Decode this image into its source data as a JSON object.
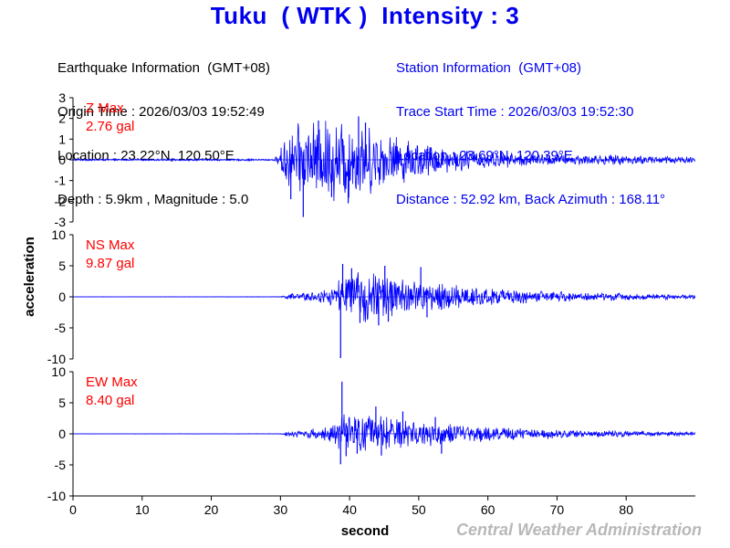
{
  "header": {
    "title": "Tuku  ( WTK )  Intensity : 3",
    "earthquake": {
      "heading": "Earthquake Information  (GMT+08)",
      "origin_time": "Origin Time : 2026/03/03 19:52:49",
      "location": "Location : 23.22°N, 120.50°E",
      "depth_mag": "Depth : 5.9km , Magnitude : 5.0"
    },
    "station": {
      "heading": "Station Information  (GMT+08)",
      "trace_start": "Trace Start Time : 2026/03/03 19:52:30",
      "location": "Location : 23.69°N, 120.39°E",
      "distance": "Distance : 52.92 km, Back Azimuth : 168.11°"
    }
  },
  "credit": "Central Weather Administration",
  "colors": {
    "title": "#0000ee",
    "trace": "#0000ff",
    "max_label": "#ff0000",
    "station_text": "#0000ee",
    "credit": "#b8b8b8"
  },
  "chart_data": {
    "type": "line",
    "xlabel": "second",
    "ylabel": "acceleration",
    "xlim": [
      0,
      90
    ],
    "xticks": [
      0,
      10,
      20,
      30,
      40,
      50,
      60,
      70,
      80
    ],
    "series": [
      {
        "name": "Z",
        "max_label": "Z Max",
        "max_value": "2.76 gal",
        "ylim": [
          -3,
          3
        ],
        "yticks": [
          3,
          2,
          1,
          0,
          -1,
          -2,
          -3
        ],
        "envelope": [
          [
            0,
            0.05
          ],
          [
            29,
            0.05
          ],
          [
            29.8,
            0.3
          ],
          [
            30.5,
            1.2
          ],
          [
            31,
            1.6
          ],
          [
            33,
            1.9
          ],
          [
            35,
            2.0
          ],
          [
            37,
            2.2
          ],
          [
            40,
            2.2
          ],
          [
            42,
            1.9
          ],
          [
            45,
            1.4
          ],
          [
            50,
            1.0
          ],
          [
            55,
            0.6
          ],
          [
            60,
            0.45
          ],
          [
            65,
            0.35
          ],
          [
            70,
            0.3
          ],
          [
            80,
            0.25
          ],
          [
            90,
            0.2
          ]
        ],
        "spikes": [
          [
            31.5,
            -1.9
          ],
          [
            33.3,
            -2.76
          ],
          [
            35.5,
            1.9
          ],
          [
            39.8,
            -2.1
          ],
          [
            41.3,
            2.1
          ],
          [
            42.3,
            1.8
          ],
          [
            37.4,
            -1.8
          ]
        ]
      },
      {
        "name": "NS",
        "max_label": "NS Max",
        "max_value": "9.87 gal",
        "ylim": [
          -10,
          10
        ],
        "yticks": [
          10,
          5,
          0,
          -5,
          -10
        ],
        "envelope": [
          [
            0,
            0.02
          ],
          [
            30,
            0.05
          ],
          [
            31,
            0.5
          ],
          [
            35,
            1.0
          ],
          [
            37,
            1.4
          ],
          [
            38,
            2.0
          ],
          [
            38.6,
            3.5
          ],
          [
            40,
            4.2
          ],
          [
            44,
            4.5
          ],
          [
            47,
            3.6
          ],
          [
            50,
            2.9
          ],
          [
            55,
            2.2
          ],
          [
            60,
            1.6
          ],
          [
            65,
            1.2
          ],
          [
            70,
            0.9
          ],
          [
            80,
            0.6
          ],
          [
            90,
            0.4
          ]
        ],
        "spikes": [
          [
            38.7,
            -9.87
          ],
          [
            39.0,
            5.3
          ],
          [
            40.3,
            4.6
          ],
          [
            41.5,
            -4.2
          ],
          [
            45.1,
            5.0
          ],
          [
            45.6,
            -4.0
          ],
          [
            50.3,
            4.8
          ],
          [
            51.2,
            -3.3
          ],
          [
            44.2,
            -4.6
          ]
        ]
      },
      {
        "name": "EW",
        "max_label": "EW Max",
        "max_value": "8.40 gal",
        "ylim": [
          -10,
          10
        ],
        "yticks": [
          10,
          5,
          0,
          -5,
          -10
        ],
        "envelope": [
          [
            0,
            0.02
          ],
          [
            30,
            0.05
          ],
          [
            31,
            0.5
          ],
          [
            35,
            0.9
          ],
          [
            37,
            1.4
          ],
          [
            38,
            2.0
          ],
          [
            38.8,
            3.2
          ],
          [
            40,
            3.4
          ],
          [
            44,
            3.4
          ],
          [
            47,
            2.8
          ],
          [
            50,
            2.4
          ],
          [
            55,
            1.7
          ],
          [
            60,
            1.3
          ],
          [
            65,
            1.0
          ],
          [
            70,
            0.8
          ],
          [
            80,
            0.5
          ],
          [
            90,
            0.4
          ]
        ],
        "spikes": [
          [
            38.9,
            8.4
          ],
          [
            38.7,
            -4.9
          ],
          [
            39.5,
            -3.6
          ],
          [
            41.1,
            -3.2
          ],
          [
            43.8,
            4.4
          ],
          [
            44.6,
            -3.5
          ],
          [
            47.7,
            3.6
          ],
          [
            53.3,
            -3.2
          ],
          [
            52.4,
            2.7
          ]
        ]
      }
    ]
  }
}
